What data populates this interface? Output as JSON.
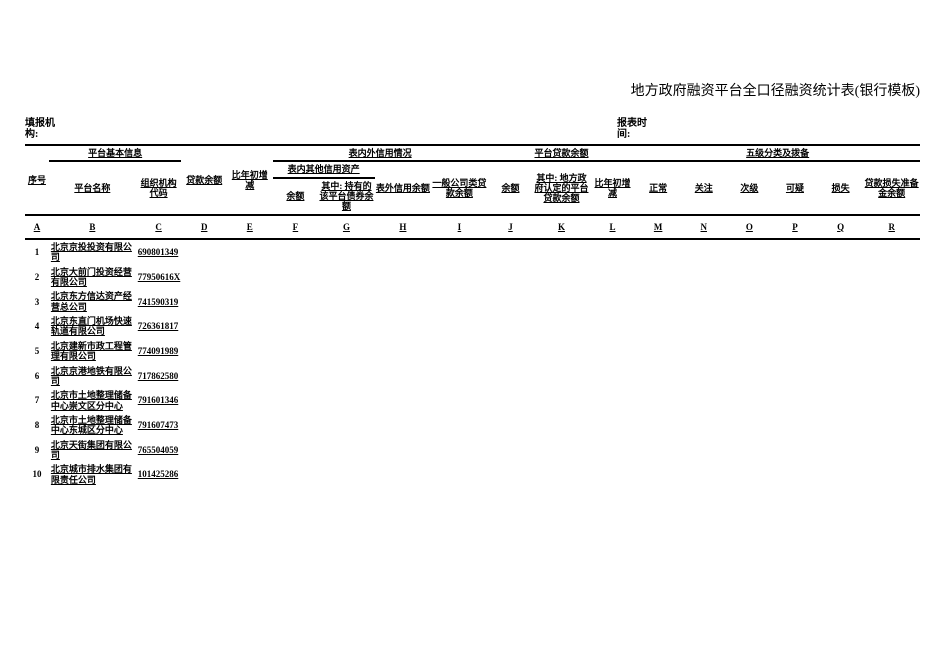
{
  "title": "地方政府融资平台全口径融资统计表(银行模板)",
  "meta": {
    "org_label": "填报机构:",
    "date_label": "报表时间:"
  },
  "header": {
    "group_basic": "平台基本信息",
    "group_credit": "表内外信用情况",
    "group_other_credit": "表内其他信用资产",
    "group_loan": "平台贷款余额",
    "group_five": "五级分类及拨备",
    "seq": "序号",
    "platform_name": "平台名称",
    "org_code": "组织机构代码",
    "loan_balance": "贷款余额",
    "yoy_change": "比年初增减",
    "balance": "余额",
    "bond_balance": "其中: 持有的该平台债券余额",
    "off_balance": "表外信用余额",
    "general_loan": "一般公司类贷款余额",
    "balance2": "余额",
    "gov_confirmed": "其中: 地方政府认定的平台贷款余额",
    "yoy_change2": "比年初增减",
    "normal": "正常",
    "concern": "关注",
    "secondary": "次级",
    "doubtful": "可疑",
    "loss": "损失",
    "provision": "贷款损失准备金余额"
  },
  "letters": [
    "A",
    "B",
    "C",
    "D",
    "E",
    "F",
    "G",
    "H",
    "I",
    "J",
    "K",
    "L",
    "M",
    "N",
    "O",
    "P",
    "Q",
    "R"
  ],
  "rows": [
    {
      "n": "1",
      "name": "北京京投投资有限公司",
      "code": "690801349"
    },
    {
      "n": "2",
      "name": "北京大前门投资经营有限公司",
      "code": "77950616X"
    },
    {
      "n": "3",
      "name": "北京东方信达资产经营总公司",
      "code": "741590319"
    },
    {
      "n": "4",
      "name": "北京东直门机场快速轨道有限公司",
      "code": "726361817"
    },
    {
      "n": "5",
      "name": "北京建新市政工程管理有限公司",
      "code": "774091989"
    },
    {
      "n": "6",
      "name": "北京京港地铁有限公司",
      "code": "717862580"
    },
    {
      "n": "7",
      "name": "北京市土地整理储备中心崇文区分中心",
      "code": "791601346"
    },
    {
      "n": "8",
      "name": "北京市土地整理储备中心东城区分中心",
      "code": "791607473"
    },
    {
      "n": "9",
      "name": "北京天街集团有限公司",
      "code": "765504059"
    },
    {
      "n": "10",
      "name": "北京城市排水集团有限责任公司",
      "code": "101425286"
    }
  ],
  "style": {
    "bg": "#ffffff",
    "text": "#000000",
    "border": "#000000",
    "title_fontsize": 14,
    "cell_fontsize": 9
  }
}
